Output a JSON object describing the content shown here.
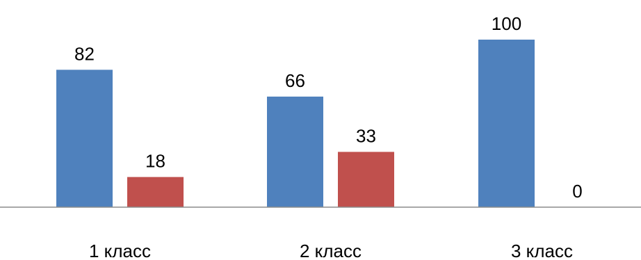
{
  "chart_data": {
    "type": "bar",
    "categories": [
      "1 класс",
      "2 класс",
      "3 класс"
    ],
    "series": [
      {
        "values": [
          82,
          66,
          100
        ],
        "color": "#4f81bd"
      },
      {
        "values": [
          18,
          33,
          0
        ],
        "color": "#c0504d"
      }
    ],
    "ylim": [
      0,
      100
    ],
    "grid": false,
    "legend": "none",
    "data_labels": true
  }
}
